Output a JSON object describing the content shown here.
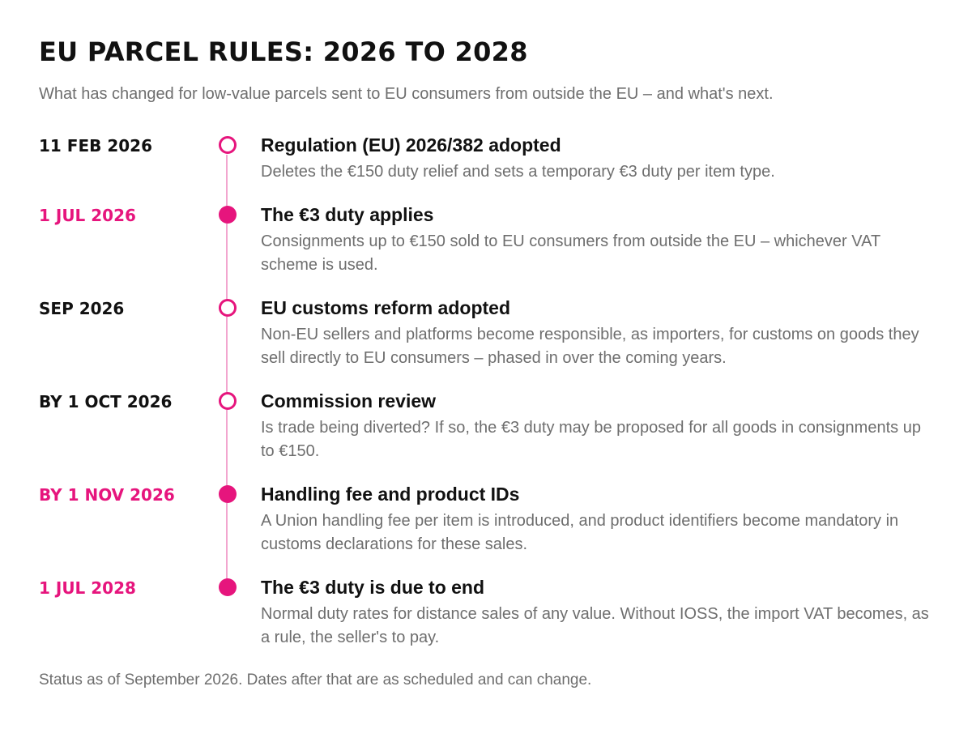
{
  "header": {
    "title": "EU PARCEL RULES: 2026 TO 2028",
    "subtitle": "What has changed for low-value parcels sent to EU consumers from outside the EU – and what's next."
  },
  "colors": {
    "accent": "#e6157d",
    "line": "#f2a6cf",
    "title_text": "#111111",
    "muted_text": "#6e6e6e"
  },
  "timeline": {
    "events": [
      {
        "date": "11 FEB 2026",
        "date_highlight": false,
        "marker": "open",
        "title": "Regulation (EU) 2026/382 adopted",
        "description": "Deletes the €150 duty relief and sets a temporary €3 duty per item type."
      },
      {
        "date": "1 JUL 2026",
        "date_highlight": true,
        "marker": "filled",
        "title": "The €3 duty applies",
        "description": "Consignments up to €150 sold to EU consumers from outside the EU – whichever VAT scheme is used."
      },
      {
        "date": "SEP 2026",
        "date_highlight": false,
        "marker": "open",
        "title": "EU customs reform adopted",
        "description": "Non-EU sellers and platforms become responsible, as importers, for customs on goods they sell directly to EU consumers – phased in over the coming years."
      },
      {
        "date": "BY 1 OCT 2026",
        "date_highlight": false,
        "marker": "open",
        "title": "Commission review",
        "description": "Is trade being diverted? If so, the €3 duty may be proposed for all goods in consignments up to €150."
      },
      {
        "date": "BY 1 NOV 2026",
        "date_highlight": true,
        "marker": "filled",
        "title": "Handling fee and product IDs",
        "description": "A Union handling fee per item is introduced, and product identifiers become mandatory in customs declarations for these sales."
      },
      {
        "date": "1 JUL 2028",
        "date_highlight": true,
        "marker": "filled",
        "title": "The €3 duty is due to end",
        "description": "Normal duty rates for distance sales of any value. Without IOSS, the import VAT becomes, as a rule, the seller's to pay."
      }
    ]
  },
  "footer": {
    "note": "Status as of September 2026. Dates after that are as scheduled and can change."
  }
}
